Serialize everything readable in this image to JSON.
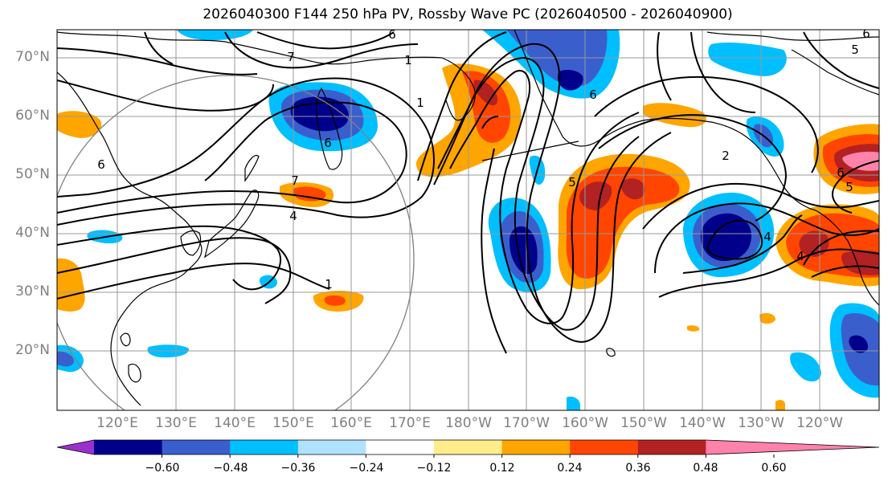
{
  "title": "2026040300 F144 250 hPa PV, Rossby Wave PC (2026040500 - 2026040900)",
  "map": {
    "lon_ticks": [
      "120°E",
      "130°E",
      "140°E",
      "150°E",
      "160°E",
      "170°E",
      "180°W",
      "170°W",
      "160°W",
      "150°W",
      "140°W",
      "130°W",
      "120°W"
    ],
    "lat_ticks": [
      "70°N",
      "60°N",
      "50°N",
      "40°N",
      "30°N",
      "20°N"
    ],
    "contour_labels": [
      "6",
      "7",
      "6",
      "1",
      "6",
      "7",
      "4",
      "1",
      "1",
      "6",
      "5",
      "4",
      "2",
      "6",
      "4",
      "5",
      "6",
      "5"
    ],
    "colors": {
      "land_line": "#000000",
      "grid": "#9a9a9a",
      "contour": "#000000",
      "circle": "#808080"
    }
  },
  "colorbar": {
    "ticks": [
      "−0.60",
      "−0.48",
      "−0.36",
      "−0.24",
      "−0.12",
      "0.12",
      "0.24",
      "0.36",
      "0.48",
      "0.60"
    ],
    "colors": [
      "#9932cc",
      "#00008b",
      "#3a5fcd",
      "#00bfff",
      "#b0e2ff",
      "#ffffff",
      "#ffec8b",
      "#ffa500",
      "#ff4500",
      "#b22222",
      "#ff82ab"
    ]
  }
}
